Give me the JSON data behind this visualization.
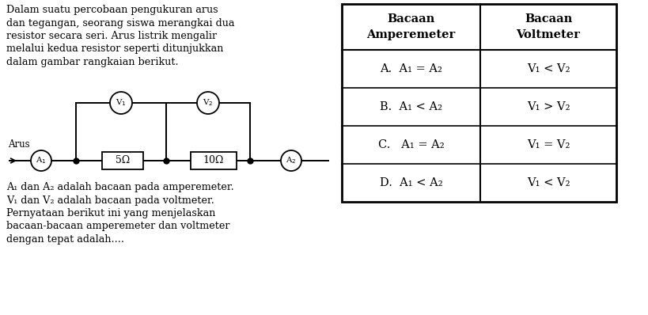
{
  "text_left_top": [
    "Dalam suatu percobaan pengukuran arus",
    "dan tegangan, seorang siswa merangkai dua",
    "resistor secara seri. Arus listrik mengalir",
    "melalui kedua resistor seperti ditunjukkan",
    "dalam gambar rangkaian berikut."
  ],
  "text_left_bottom": [
    "A₁ dan A₂ adalah bacaan pada amperemeter.",
    "V₁ dan V₂ adalah bacaan pada voltmeter.",
    "Pernyataan berikut ini yang menjelaskan",
    "bacaan-bacaan amperemeter dan voltmeter",
    "dengan tepat adalah...."
  ],
  "table_headers": [
    "Bacaan\nAmperemeter",
    "Bacaan\nVoltmeter"
  ],
  "table_rows": [
    [
      "A.  A₁ = A₂",
      "V₁ < V₂"
    ],
    [
      "B.  A₁ < A₂",
      "V₁ > V₂"
    ],
    [
      "C.   A₁ = A₂",
      "V₁ = V₂"
    ],
    [
      "D.  A₁ < A₂",
      "V₁ < V₂"
    ]
  ],
  "circuit_label_arus": "Arus",
  "resistor1": "5Ω",
  "resistor2": "10Ω",
  "bg_color": "#ffffff",
  "text_color": "#000000",
  "fig_w": 8.2,
  "fig_h": 3.98,
  "dpi": 100
}
